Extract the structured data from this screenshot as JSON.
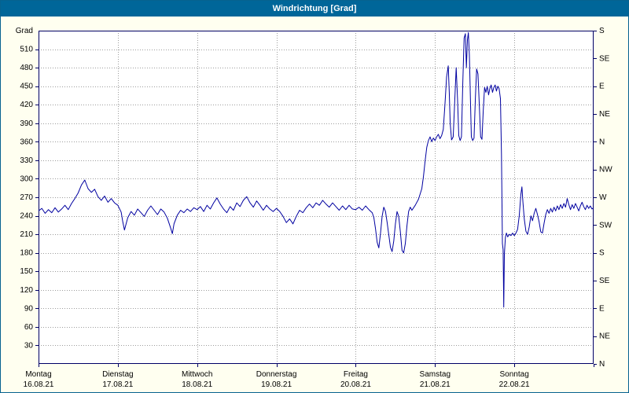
{
  "window": {
    "title": "Windrichtung [Grad]",
    "titlebar_color": "#006699",
    "border_color": "#06628f",
    "background_color": "#fffff0"
  },
  "chart_data": {
    "type": "line",
    "title": "Windrichtung [Grad]",
    "ylabel": "Grad",
    "ylim": [
      0,
      540
    ],
    "xlim": [
      0,
      168
    ],
    "x_unit": "hours_from_monday_00",
    "grid": true,
    "legend": false,
    "plot_bg_color": "#ffffff",
    "grid_color": "#9c9c9c",
    "axis_color": "#000066",
    "line_color": "#0000a0",
    "y_ticks_left": [
      30,
      60,
      90,
      120,
      150,
      180,
      210,
      240,
      270,
      300,
      330,
      360,
      390,
      420,
      450,
      480,
      510
    ],
    "y_ticks_right": [
      {
        "value": 0,
        "label": "N"
      },
      {
        "value": 45,
        "label": "NE"
      },
      {
        "value": 90,
        "label": "E"
      },
      {
        "value": 135,
        "label": "SE"
      },
      {
        "value": 180,
        "label": "S"
      },
      {
        "value": 225,
        "label": "SW"
      },
      {
        "value": 270,
        "label": "W"
      },
      {
        "value": 315,
        "label": "NW"
      },
      {
        "value": 360,
        "label": "N"
      },
      {
        "value": 405,
        "label": "NE"
      },
      {
        "value": 450,
        "label": "E"
      },
      {
        "value": 495,
        "label": "SE"
      },
      {
        "value": 540,
        "label": "S"
      }
    ],
    "x_day_labels": [
      {
        "name": "Montag",
        "date": "16.08.21"
      },
      {
        "name": "Dienstag",
        "date": "17.08.21"
      },
      {
        "name": "Mittwoch",
        "date": "18.08.21"
      },
      {
        "name": "Donnerstag",
        "date": "19.08.21"
      },
      {
        "name": "Freitag",
        "date": "20.08.21"
      },
      {
        "name": "Samstag",
        "date": "21.08.21"
      },
      {
        "name": "Sonntag",
        "date": "22.08.21"
      }
    ],
    "series": [
      {
        "name": "Windrichtung",
        "points": [
          [
            0,
            248
          ],
          [
            1,
            252
          ],
          [
            2,
            244
          ],
          [
            3,
            250
          ],
          [
            4,
            245
          ],
          [
            5,
            253
          ],
          [
            6,
            246
          ],
          [
            7,
            251
          ],
          [
            8,
            257
          ],
          [
            9,
            250
          ],
          [
            10,
            260
          ],
          [
            11,
            268
          ],
          [
            12,
            277
          ],
          [
            13,
            290
          ],
          [
            14,
            298
          ],
          [
            15,
            284
          ],
          [
            16,
            278
          ],
          [
            17,
            283
          ],
          [
            18,
            271
          ],
          [
            19,
            265
          ],
          [
            20,
            272
          ],
          [
            21,
            262
          ],
          [
            22,
            268
          ],
          [
            23,
            261
          ],
          [
            24,
            257
          ],
          [
            25,
            246
          ],
          [
            25.5,
            230
          ],
          [
            26,
            217
          ],
          [
            27,
            237
          ],
          [
            28,
            247
          ],
          [
            29,
            241
          ],
          [
            30,
            251
          ],
          [
            31,
            245
          ],
          [
            32,
            239
          ],
          [
            33,
            249
          ],
          [
            34,
            256
          ],
          [
            35,
            249
          ],
          [
            36,
            242
          ],
          [
            37,
            251
          ],
          [
            38,
            246
          ],
          [
            39,
            236
          ],
          [
            40,
            220
          ],
          [
            40.5,
            211
          ],
          [
            41,
            227
          ],
          [
            42,
            241
          ],
          [
            43,
            249
          ],
          [
            44,
            245
          ],
          [
            45,
            251
          ],
          [
            46,
            247
          ],
          [
            47,
            253
          ],
          [
            48,
            250
          ],
          [
            49,
            255
          ],
          [
            50,
            247
          ],
          [
            51,
            257
          ],
          [
            52,
            251
          ],
          [
            53,
            261
          ],
          [
            54,
            269
          ],
          [
            55,
            259
          ],
          [
            56,
            251
          ],
          [
            57,
            245
          ],
          [
            58,
            255
          ],
          [
            59,
            249
          ],
          [
            60,
            261
          ],
          [
            61,
            255
          ],
          [
            62,
            265
          ],
          [
            63,
            271
          ],
          [
            64,
            261
          ],
          [
            65,
            254
          ],
          [
            66,
            264
          ],
          [
            67,
            257
          ],
          [
            68,
            249
          ],
          [
            69,
            257
          ],
          [
            70,
            251
          ],
          [
            71,
            247
          ],
          [
            72,
            252
          ],
          [
            73,
            247
          ],
          [
            74,
            239
          ],
          [
            75,
            229
          ],
          [
            76,
            235
          ],
          [
            77,
            227
          ],
          [
            78,
            239
          ],
          [
            79,
            249
          ],
          [
            80,
            245
          ],
          [
            81,
            253
          ],
          [
            82,
            259
          ],
          [
            83,
            253
          ],
          [
            84,
            261
          ],
          [
            85,
            257
          ],
          [
            86,
            265
          ],
          [
            87,
            259
          ],
          [
            88,
            254
          ],
          [
            89,
            261
          ],
          [
            90,
            255
          ],
          [
            91,
            249
          ],
          [
            92,
            256
          ],
          [
            93,
            250
          ],
          [
            94,
            257
          ],
          [
            95,
            251
          ],
          [
            96,
            250
          ],
          [
            97,
            254
          ],
          [
            98,
            249
          ],
          [
            99,
            256
          ],
          [
            100,
            250
          ],
          [
            101,
            245
          ],
          [
            101.5,
            237
          ],
          [
            102,
            219
          ],
          [
            102.5,
            197
          ],
          [
            103,
            188
          ],
          [
            103.5,
            211
          ],
          [
            104,
            239
          ],
          [
            104.5,
            254
          ],
          [
            105,
            247
          ],
          [
            105.5,
            229
          ],
          [
            106,
            209
          ],
          [
            106.5,
            189
          ],
          [
            107,
            182
          ],
          [
            107.5,
            199
          ],
          [
            108,
            227
          ],
          [
            108.5,
            247
          ],
          [
            109,
            239
          ],
          [
            109.5,
            214
          ],
          [
            110,
            184
          ],
          [
            110.5,
            180
          ],
          [
            111,
            195
          ],
          [
            111.5,
            224
          ],
          [
            112,
            247
          ],
          [
            112.5,
            254
          ],
          [
            113,
            249
          ],
          [
            114,
            257
          ],
          [
            115,
            267
          ],
          [
            116,
            284
          ],
          [
            116.5,
            304
          ],
          [
            117,
            329
          ],
          [
            117.5,
            351
          ],
          [
            118,
            362
          ],
          [
            118.5,
            368
          ],
          [
            119,
            360
          ],
          [
            119.5,
            366
          ],
          [
            120,
            362
          ],
          [
            120.5,
            368
          ],
          [
            121,
            372
          ],
          [
            121.5,
            365
          ],
          [
            122,
            370
          ],
          [
            122.5,
            380
          ],
          [
            123,
            420
          ],
          [
            123.5,
            465
          ],
          [
            124,
            483
          ],
          [
            124.3,
            440
          ],
          [
            124.6,
            390
          ],
          [
            125,
            363
          ],
          [
            125.5,
            368
          ],
          [
            126,
            430
          ],
          [
            126.4,
            480
          ],
          [
            126.8,
            430
          ],
          [
            127.2,
            370
          ],
          [
            127.6,
            362
          ],
          [
            128,
            368
          ],
          [
            128.4,
            455
          ],
          [
            128.8,
            528
          ],
          [
            129.2,
            535
          ],
          [
            129.5,
            480
          ],
          [
            129.8,
            525
          ],
          [
            130.1,
            537
          ],
          [
            130.4,
            500
          ],
          [
            130.7,
            430
          ],
          [
            131,
            368
          ],
          [
            131.4,
            362
          ],
          [
            131.8,
            366
          ],
          [
            132.2,
            430
          ],
          [
            132.6,
            478
          ],
          [
            133,
            470
          ],
          [
            133.4,
            420
          ],
          [
            133.8,
            368
          ],
          [
            134.2,
            364
          ],
          [
            134.6,
            410
          ],
          [
            135,
            448
          ],
          [
            135.4,
            440
          ],
          [
            135.8,
            450
          ],
          [
            136.2,
            436
          ],
          [
            136.6,
            446
          ],
          [
            137,
            452
          ],
          [
            137.4,
            440
          ],
          [
            137.8,
            448
          ],
          [
            138.2,
            452
          ],
          [
            138.6,
            442
          ],
          [
            139,
            450
          ],
          [
            139.4,
            446
          ],
          [
            139.8,
            430
          ],
          [
            140.1,
            340
          ],
          [
            140.4,
            195
          ],
          [
            140.6,
            185
          ],
          [
            140.8,
            92
          ],
          [
            141,
            178
          ],
          [
            141.3,
            205
          ],
          [
            141.6,
            212
          ],
          [
            142,
            206
          ],
          [
            142.5,
            210
          ],
          [
            143,
            208
          ],
          [
            143.5,
            212
          ],
          [
            144,
            208
          ],
          [
            144.5,
            212
          ],
          [
            145,
            218
          ],
          [
            145.5,
            240
          ],
          [
            146,
            275
          ],
          [
            146.3,
            287
          ],
          [
            146.6,
            262
          ],
          [
            147,
            235
          ],
          [
            147.5,
            215
          ],
          [
            148,
            210
          ],
          [
            148.5,
            222
          ],
          [
            149,
            240
          ],
          [
            149.5,
            232
          ],
          [
            150,
            244
          ],
          [
            150.5,
            252
          ],
          [
            151,
            242
          ],
          [
            151.5,
            230
          ],
          [
            152,
            214
          ],
          [
            152.5,
            212
          ],
          [
            153,
            228
          ],
          [
            153.5,
            242
          ],
          [
            154,
            250
          ],
          [
            154.5,
            244
          ],
          [
            155,
            252
          ],
          [
            155.5,
            246
          ],
          [
            156,
            254
          ],
          [
            156.5,
            248
          ],
          [
            157,
            256
          ],
          [
            157.5,
            250
          ],
          [
            158,
            258
          ],
          [
            158.5,
            252
          ],
          [
            159,
            260
          ],
          [
            159.5,
            254
          ],
          [
            160,
            268
          ],
          [
            160.5,
            258
          ],
          [
            161,
            250
          ],
          [
            161.5,
            258
          ],
          [
            162,
            252
          ],
          [
            162.5,
            260
          ],
          [
            163,
            254
          ],
          [
            163.5,
            248
          ],
          [
            164,
            256
          ],
          [
            164.5,
            262
          ],
          [
            165,
            255
          ],
          [
            165.5,
            250
          ],
          [
            166,
            257
          ],
          [
            166.5,
            252
          ],
          [
            167,
            256
          ],
          [
            167.5,
            251
          ],
          [
            168,
            253
          ]
        ]
      }
    ]
  }
}
